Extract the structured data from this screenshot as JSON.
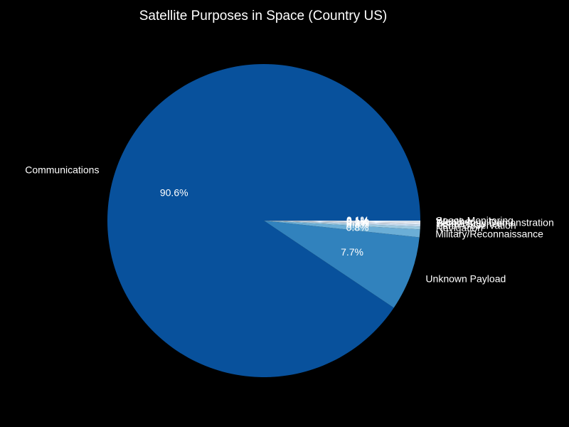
{
  "chart_data": {
    "type": "pie",
    "title": "Satellite Purposes in Space (Country US)",
    "slices": [
      {
        "label": "Communications",
        "value": 90.6,
        "pct_label": "90.6%",
        "color": "#08519c"
      },
      {
        "label": "Unknown Payload",
        "value": 7.7,
        "pct_label": "7.7%",
        "color": "#3182bd"
      },
      {
        "label": "Military/Reconnaissance",
        "value": 0.8,
        "pct_label": "0.8%",
        "color": "#6baed6"
      },
      {
        "label": "Navigation",
        "value": 0.3,
        "pct_label": "0.3%",
        "color": "#9ecae1"
      },
      {
        "label": "Earth Observation",
        "value": 0.2,
        "pct_label": "0.2%",
        "color": "#c6dbef"
      },
      {
        "label": "Space Science",
        "value": 0.1,
        "pct_label": "0.1%",
        "color": "#deebf7"
      },
      {
        "label": "Technology Demonstration",
        "value": 0.1,
        "pct_label": "0.1%",
        "color": "#eff3ff"
      },
      {
        "label": "Weather",
        "value": 0.1,
        "pct_label": "0.1%",
        "color": "#f7fbff"
      },
      {
        "label": "Space Monitoring",
        "value": 0.1,
        "pct_label": "0.1%",
        "color": "#e1edf8"
      }
    ],
    "legend": "none",
    "grid": false
  }
}
